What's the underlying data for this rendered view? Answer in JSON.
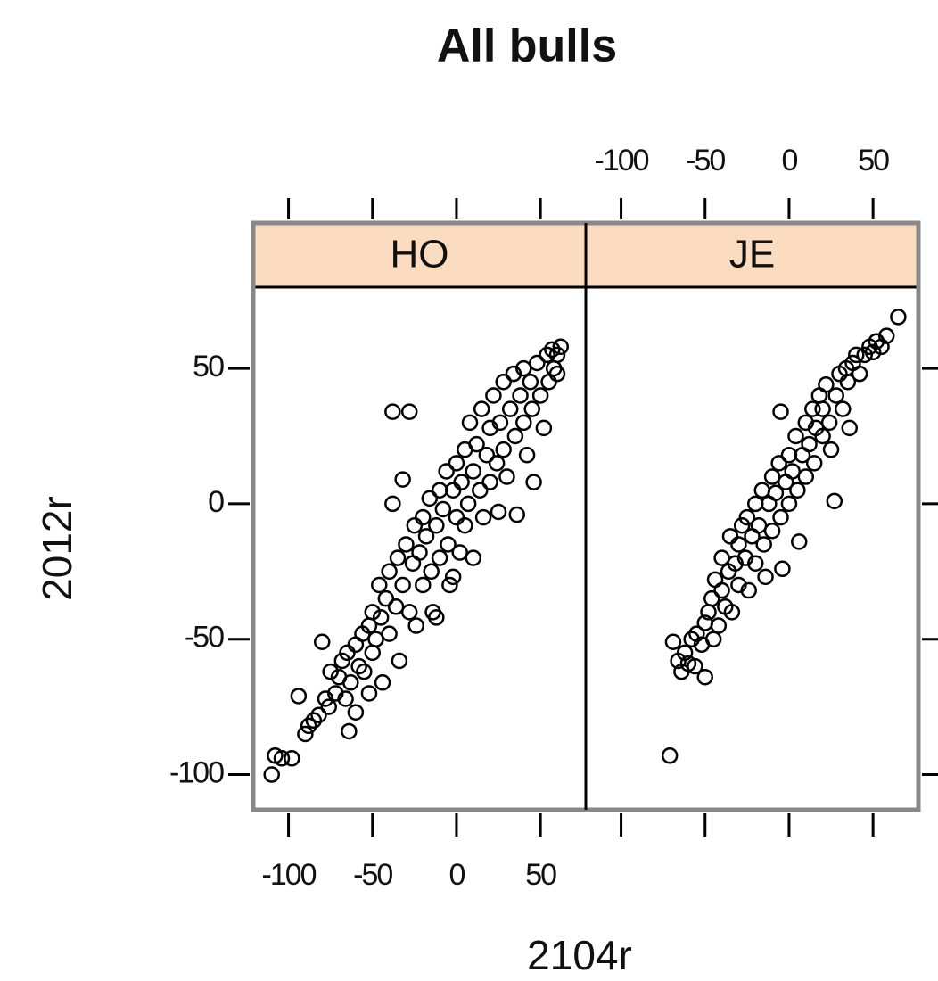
{
  "title": "All bulls",
  "xlabel": "2104r",
  "ylabel": "2012r",
  "chart_data": [
    {
      "type": "scatter",
      "title": "HO",
      "strip_color": "#fcdcc0",
      "point_color": "#000000",
      "xlim": [
        -121,
        77
      ],
      "ylim": [
        -113,
        80
      ],
      "xticks": [
        -100,
        -50,
        0,
        50
      ],
      "yticks": [
        -100,
        -50,
        0,
        50
      ],
      "x": [
        -110,
        -108,
        -104,
        -98,
        -94,
        -90,
        -88,
        -85,
        -82,
        -80,
        -78,
        -76,
        -75,
        -72,
        -70,
        -68,
        -66,
        -65,
        -63,
        -60,
        -60,
        -58,
        -56,
        -55,
        -52,
        -50,
        -50,
        -48,
        -46,
        -45,
        -44,
        -42,
        -40,
        -40,
        -38,
        -38,
        -36,
        -35,
        -34,
        -32,
        -32,
        -30,
        -28,
        -28,
        -26,
        -25,
        -24,
        -22,
        -20,
        -20,
        -18,
        -16,
        -15,
        -14,
        -12,
        -10,
        -10,
        -8,
        -6,
        -5,
        -4,
        -2,
        0,
        0,
        2,
        3,
        5,
        5,
        7,
        8,
        10,
        10,
        12,
        14,
        15,
        16,
        18,
        20,
        20,
        22,
        24,
        25,
        26,
        28,
        28,
        30,
        32,
        34,
        35,
        36,
        38,
        40,
        40,
        42,
        44,
        45,
        46,
        48,
        50,
        52,
        54,
        55,
        57,
        58,
        60,
        62,
        60,
        -2,
        -12,
        -52,
        -64
      ],
      "y": [
        -100,
        -93,
        -94,
        -94,
        -71,
        -85,
        -82,
        -80,
        -78,
        -51,
        -72,
        -75,
        -62,
        -70,
        -64,
        -58,
        -72,
        -55,
        -66,
        -77,
        -52,
        -60,
        -48,
        -62,
        -45,
        -55,
        -40,
        -50,
        -30,
        -42,
        -66,
        -35,
        -48,
        -25,
        0,
        34,
        -38,
        -20,
        -58,
        9,
        -30,
        -15,
        34,
        -40,
        -22,
        -8,
        -45,
        -18,
        -5,
        -30,
        -12,
        2,
        -25,
        -40,
        -8,
        5,
        -20,
        -2,
        12,
        -15,
        -30,
        5,
        -5,
        15,
        -18,
        8,
        20,
        -8,
        0,
        30,
        12,
        -20,
        22,
        5,
        35,
        -5,
        18,
        28,
        8,
        40,
        15,
        -3,
        30,
        45,
        20,
        10,
        35,
        48,
        25,
        -4,
        40,
        30,
        50,
        18,
        45,
        35,
        8,
        52,
        40,
        28,
        55,
        45,
        57,
        50,
        55,
        58,
        48,
        -27,
        -42,
        -70,
        -84
      ]
    },
    {
      "type": "scatter",
      "title": "JE",
      "strip_color": "#fcdcc0",
      "point_color": "#000000",
      "xlim": [
        -121,
        77
      ],
      "ylim": [
        -113,
        80
      ],
      "xticks": [
        -100,
        -50,
        0,
        50
      ],
      "yticks": [
        -100,
        -50,
        0,
        50
      ],
      "x": [
        -71,
        -69,
        -66,
        -64,
        -62,
        -60,
        -58,
        -56,
        -55,
        -52,
        -50,
        -50,
        -48,
        -46,
        -45,
        -44,
        -42,
        -40,
        -40,
        -38,
        -36,
        -35,
        -34,
        -32,
        -30,
        -30,
        -28,
        -26,
        -25,
        -24,
        -22,
        -20,
        -20,
        -18,
        -16,
        -15,
        -14,
        -12,
        -10,
        -10,
        -8,
        -6,
        -5,
        -4,
        -5,
        -2,
        0,
        0,
        2,
        4,
        5,
        6,
        8,
        10,
        10,
        12,
        14,
        15,
        16,
        18,
        20,
        20,
        22,
        24,
        25,
        27,
        28,
        30,
        32,
        34,
        35,
        36,
        38,
        40,
        42,
        45,
        48,
        50,
        52,
        55,
        58,
        65
      ],
      "y": [
        -93,
        -51,
        -58,
        -62,
        -55,
        -59,
        -50,
        -60,
        -48,
        -52,
        -64,
        -44,
        -40,
        -35,
        -50,
        -28,
        -45,
        -32,
        -20,
        -38,
        -25,
        -12,
        -40,
        -22,
        -15,
        -30,
        -8,
        -20,
        -5,
        -32,
        -12,
        0,
        -22,
        -8,
        5,
        -15,
        -27,
        0,
        10,
        -10,
        4,
        15,
        -5,
        -24,
        34,
        8,
        18,
        0,
        12,
        25,
        5,
        -14,
        18,
        30,
        10,
        22,
        35,
        15,
        28,
        40,
        25,
        35,
        44,
        30,
        20,
        1,
        40,
        48,
        35,
        50,
        45,
        28,
        52,
        55,
        48,
        55,
        58,
        56,
        60,
        58,
        62,
        69
      ]
    }
  ]
}
